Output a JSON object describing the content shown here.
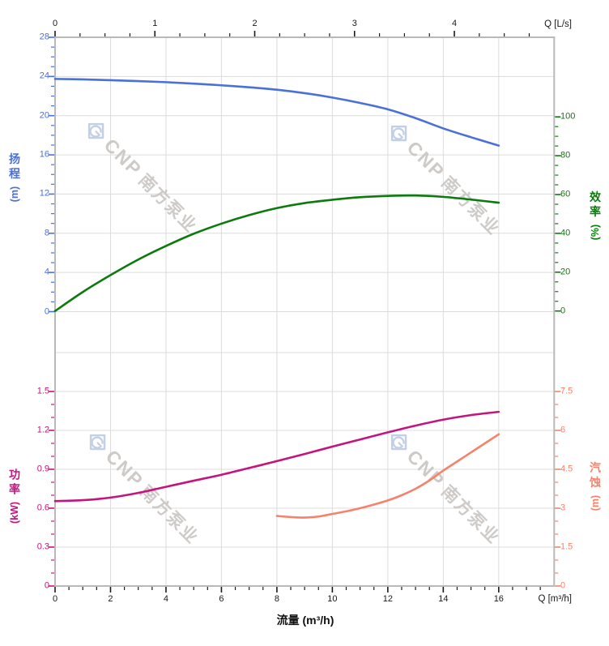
{
  "watermark": {
    "brand": "CNP",
    "company": "南方泵业"
  },
  "colors": {
    "grid": "#dcdcdc",
    "border": "#b9b9b9",
    "axis_text": "#1a1a1a",
    "head": "#4a70d9",
    "efficiency": "#0c7a0c",
    "power": "#c4157e",
    "npsh": "#f5836b",
    "watermark_logo": "#bccbe4",
    "watermark_text": "#c9c5c1"
  },
  "chart_data": {
    "type": "line",
    "title": "",
    "x_shared": {
      "top_label_unit": "Q [L/s]",
      "bottom_label_unit": "Q [m³/h]",
      "bottom_axis_title": "流量 (m³/h)",
      "top": {
        "id": "flow_ls",
        "min": 0,
        "max": 5,
        "majors": [
          0,
          1,
          2,
          3,
          4
        ],
        "labels": [
          "0",
          "1",
          "2",
          "3",
          "4"
        ],
        "minor_step": 0.25
      },
      "bottom": {
        "id": "flow_m3h",
        "min": 0,
        "max": 18,
        "majors": [
          0,
          2,
          4,
          6,
          8,
          10,
          12,
          14,
          16
        ],
        "labels": [
          "0",
          "2",
          "4",
          "6",
          "8",
          "10",
          "12",
          "14",
          "16"
        ],
        "minor_step": 0.5,
        "grid_values": [
          2,
          4,
          6,
          8,
          10,
          12,
          14,
          16
        ]
      }
    },
    "panels": [
      {
        "name": "head-efficiency-panel",
        "left_axis": {
          "id": "head",
          "title_cjk": "扬程",
          "title_unit": "(m)",
          "color_key": "head",
          "min": 0,
          "max": 28,
          "majors": [
            0,
            4,
            8,
            12,
            16,
            20,
            24,
            28
          ],
          "labels": [
            "0",
            "4",
            "8",
            "12",
            "16",
            "20",
            "24",
            "28"
          ],
          "minor_step": 1,
          "grid_values": [
            0,
            4,
            8,
            12,
            16,
            20,
            24
          ]
        },
        "right_axis": {
          "id": "eff",
          "title_cjk": "效率",
          "title_unit": "(%)",
          "color_key": "efficiency",
          "min": 0,
          "max": 100,
          "majors": [
            0,
            20,
            40,
            60,
            80,
            100
          ],
          "labels": [
            "0",
            "20",
            "40",
            "60",
            "80",
            "100"
          ],
          "minor_step": 5,
          "grid_values": []
        },
        "series": [
          {
            "name": "head",
            "axis": "head",
            "color_key": "head",
            "x": [
              0,
              1,
              2,
              3,
              4,
              5,
              6,
              7,
              8,
              9,
              10,
              11,
              12,
              13,
              14,
              15,
              16
            ],
            "y": [
              23.75,
              23.7,
              23.62,
              23.53,
              23.42,
              23.27,
              23.1,
              22.9,
              22.65,
              22.3,
              21.85,
              21.3,
              20.65,
              19.75,
              18.7,
              17.8,
              16.95
            ]
          },
          {
            "name": "efficiency",
            "axis": "eff",
            "color_key": "efficiency",
            "x": [
              0,
              1,
              2,
              3,
              4,
              5,
              6,
              7,
              8,
              9,
              10,
              11,
              12,
              13,
              14,
              15,
              16
            ],
            "y": [
              0,
              9.8,
              18.5,
              26.5,
              33.5,
              39.8,
              45,
              49.4,
              53,
              55.6,
              57.3,
              58.6,
              59.3,
              59.5,
              58.8,
              57.4,
              55.8
            ]
          }
        ]
      },
      {
        "name": "power-npsh-panel",
        "left_axis": {
          "id": "power",
          "title_cjk": "功率",
          "title_unit": "(kW)",
          "color_key": "power",
          "min": 0,
          "max": 1.5,
          "majors": [
            0,
            0.3,
            0.6,
            0.9,
            1.2,
            1.5
          ],
          "labels": [
            "0",
            "0.3",
            "0.6",
            "0.9",
            "1.2",
            "1.5"
          ],
          "minor_step": 0.1,
          "grid_values": [
            0.3,
            0.6,
            0.9,
            1.2,
            1.5,
            1.8
          ]
        },
        "right_axis": {
          "id": "npsh",
          "title_cjk": "汽蚀",
          "title_unit": "(m)",
          "color_key": "npsh",
          "min": 0,
          "max": 7.5,
          "majors": [
            0,
            1.5,
            3,
            4.5,
            6,
            7.5
          ],
          "labels": [
            "0",
            "1.5",
            "3",
            "4.5",
            "6",
            "7.5"
          ],
          "minor_step": 0.5,
          "grid_values": []
        },
        "series": [
          {
            "name": "power",
            "axis": "power",
            "color_key": "power",
            "x": [
              0,
              1,
              2,
              3,
              4,
              5,
              6,
              7,
              8,
              9,
              10,
              11,
              12,
              13,
              14,
              15,
              16
            ],
            "y": [
              0.655,
              0.662,
              0.682,
              0.718,
              0.765,
              0.812,
              0.858,
              0.91,
              0.963,
              1.018,
              1.075,
              1.13,
              1.185,
              1.237,
              1.283,
              1.318,
              1.343
            ]
          },
          {
            "name": "npsh",
            "axis": "npsh",
            "color_key": "npsh",
            "x": [
              8,
              8.5,
              9,
              9.5,
              10,
              10.5,
              11,
              11.5,
              12,
              12.5,
              13,
              13.5,
              14,
              14.5,
              15,
              15.5,
              16
            ],
            "y": [
              2.7,
              2.66,
              2.64,
              2.68,
              2.78,
              2.88,
              3.0,
              3.14,
              3.3,
              3.5,
              3.75,
              4.07,
              4.45,
              4.8,
              5.15,
              5.5,
              5.85
            ]
          }
        ]
      }
    ]
  }
}
